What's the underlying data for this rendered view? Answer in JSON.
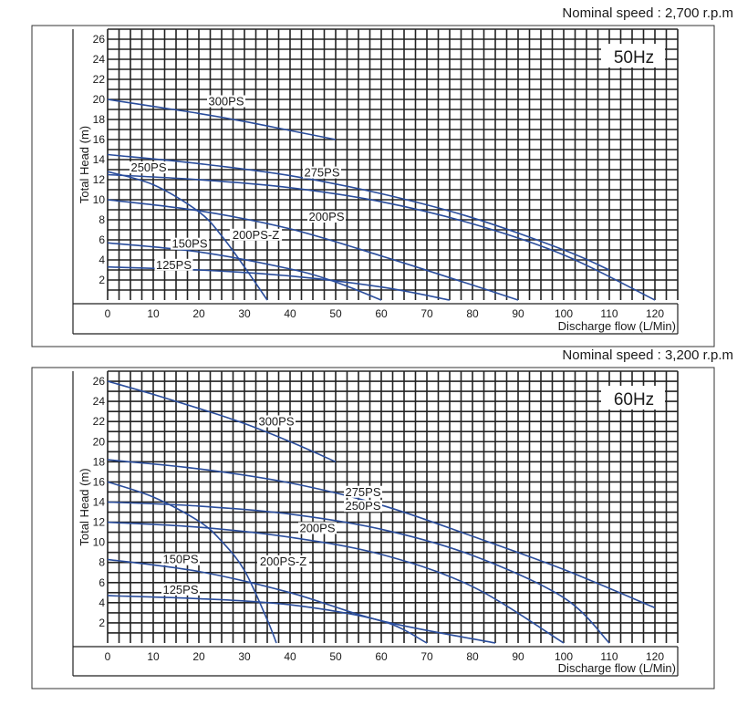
{
  "chart_data": [
    {
      "type": "line",
      "nominal_speed": "Nominal speed : 2,700 r.p.m",
      "frequency": "50Hz",
      "xlabel": "Discharge flow (L/Min)",
      "ylabel": "Total Head (m)",
      "xlim": [
        0,
        125
      ],
      "ylim": [
        0,
        27
      ],
      "x_ticks": [
        0,
        10,
        20,
        30,
        40,
        50,
        60,
        70,
        80,
        90,
        100,
        110,
        120
      ],
      "y_ticks": [
        2,
        4,
        6,
        8,
        10,
        12,
        14,
        16,
        18,
        20,
        22,
        24,
        26
      ],
      "grid": true,
      "series": [
        {
          "name": "300PS",
          "x": [
            0,
            10,
            20,
            30,
            40,
            50
          ],
          "y": [
            20,
            19.3,
            18.6,
            17.8,
            16.9,
            16
          ]
        },
        {
          "name": "275PS",
          "x": [
            0,
            20,
            40,
            60,
            80,
            100,
            110
          ],
          "y": [
            14.5,
            13.6,
            12.4,
            10.6,
            8.2,
            5,
            3
          ]
        },
        {
          "name": "250PS",
          "x": [
            0,
            20,
            40,
            60,
            80,
            100,
            120
          ],
          "y": [
            12.5,
            12,
            11.2,
            9.8,
            7.6,
            4.5,
            0
          ]
        },
        {
          "name": "200PS",
          "x": [
            0,
            20,
            40,
            60,
            80,
            90
          ],
          "y": [
            10,
            8.9,
            7.1,
            4.4,
            1.5,
            0
          ]
        },
        {
          "name": "200PS-Z",
          "x": [
            0,
            10,
            20,
            25,
            30,
            35
          ],
          "y": [
            12.8,
            11.5,
            8.8,
            6.4,
            3.3,
            0
          ]
        },
        {
          "name": "150PS",
          "x": [
            0,
            20,
            40,
            50,
            60
          ],
          "y": [
            5.7,
            4.8,
            3.1,
            1.8,
            0
          ]
        },
        {
          "name": "125PS",
          "x": [
            0,
            20,
            40,
            60,
            75
          ],
          "y": [
            3.3,
            3,
            2.4,
            1.3,
            0
          ]
        }
      ],
      "label_positions": [
        {
          "name": "300PS",
          "x": 26,
          "y": 19.5
        },
        {
          "name": "275PS",
          "x": 47,
          "y": 12.4
        },
        {
          "name": "250PS",
          "x": 9,
          "y": 12.9
        },
        {
          "name": "200PS",
          "x": 48,
          "y": 8
        },
        {
          "name": "200PS-Z",
          "x": 32.5,
          "y": 6.2
        },
        {
          "name": "150PS",
          "x": 18,
          "y": 5.3
        },
        {
          "name": "125PS",
          "x": 14.5,
          "y": 3.2
        }
      ]
    },
    {
      "type": "line",
      "nominal_speed": "Nominal speed : 3,200 r.p.m",
      "frequency": "60Hz",
      "xlabel": "Discharge flow (L/Min)",
      "ylabel": "Total Head (m)",
      "xlim": [
        0,
        125
      ],
      "ylim": [
        0,
        27
      ],
      "x_ticks": [
        0,
        10,
        20,
        30,
        40,
        50,
        60,
        70,
        80,
        90,
        100,
        110,
        120
      ],
      "y_ticks": [
        2,
        4,
        6,
        8,
        10,
        12,
        14,
        16,
        18,
        20,
        22,
        24,
        26
      ],
      "grid": true,
      "series": [
        {
          "name": "300PS",
          "x": [
            0,
            10,
            20,
            30,
            40,
            50
          ],
          "y": [
            26,
            24.7,
            23.3,
            21.8,
            20,
            18
          ]
        },
        {
          "name": "275PS",
          "x": [
            0,
            20,
            40,
            60,
            80,
            100,
            120
          ],
          "y": [
            18.2,
            17.3,
            15.9,
            13.7,
            10.6,
            7.3,
            3.5
          ]
        },
        {
          "name": "250PS",
          "x": [
            0,
            20,
            40,
            60,
            80,
            100,
            110
          ],
          "y": [
            14,
            13.6,
            12.8,
            11.3,
            8.7,
            4.5,
            0
          ]
        },
        {
          "name": "200PS",
          "x": [
            0,
            20,
            40,
            60,
            80,
            100
          ],
          "y": [
            12,
            11.5,
            10.5,
            8.8,
            5.6,
            0
          ]
        },
        {
          "name": "200PS-Z",
          "x": [
            0,
            10,
            20,
            25,
            30,
            35,
            37
          ],
          "y": [
            16,
            14.5,
            12.1,
            10.1,
            7.2,
            2.3,
            0
          ]
        },
        {
          "name": "150PS",
          "x": [
            0,
            20,
            40,
            60,
            85
          ],
          "y": [
            8.3,
            7.1,
            5,
            2.2,
            0
          ]
        },
        {
          "name": "125PS",
          "x": [
            0,
            20,
            40,
            60,
            70
          ],
          "y": [
            4.7,
            4.4,
            3.8,
            2.2,
            0
          ]
        }
      ],
      "label_positions": [
        {
          "name": "300PS",
          "x": 37,
          "y": 21.7
        },
        {
          "name": "275PS",
          "x": 56,
          "y": 14.7
        },
        {
          "name": "250PS",
          "x": 56,
          "y": 13.3
        },
        {
          "name": "200PS",
          "x": 46,
          "y": 11.1
        },
        {
          "name": "200PS-Z",
          "x": 38.5,
          "y": 7.8
        },
        {
          "name": "150PS",
          "x": 16,
          "y": 8
        },
        {
          "name": "125PS",
          "x": 16,
          "y": 5
        }
      ]
    }
  ]
}
